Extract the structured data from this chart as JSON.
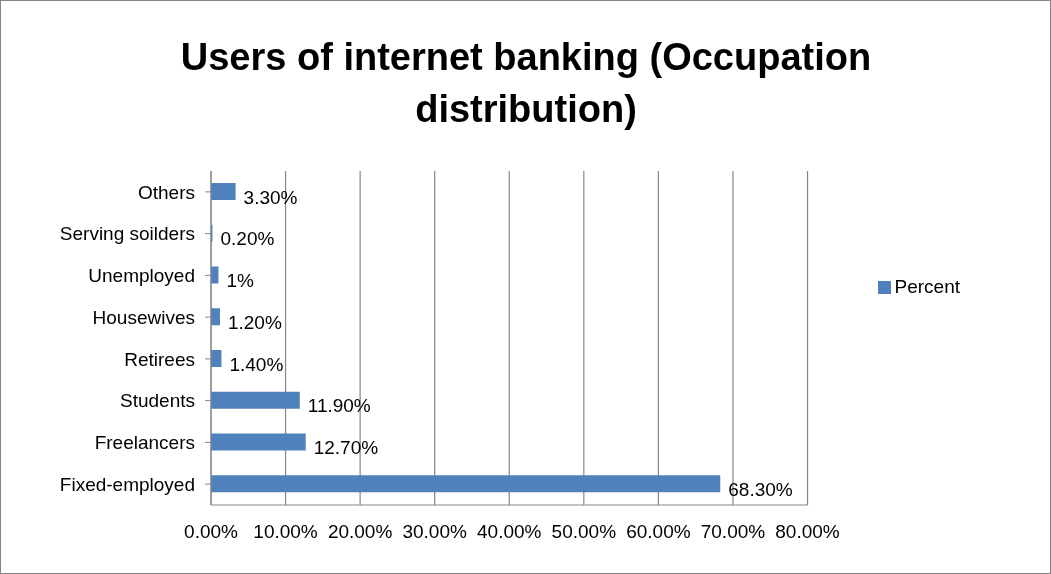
{
  "chart_data": {
    "type": "bar",
    "orientation": "horizontal",
    "title": "Users of internet banking (Occupation distribution)",
    "categories": [
      "Others",
      "Serving soilders",
      "Unemployed",
      "Housewives",
      "Retirees",
      "Students",
      "Freelancers",
      "Fixed-employed"
    ],
    "series": [
      {
        "name": "Percent",
        "color": "#4f81bd",
        "values": [
          3.3,
          0.2,
          1,
          1.2,
          1.4,
          11.9,
          12.7,
          68.3
        ],
        "value_labels": [
          "3.30%",
          "0.20%",
          "1%",
          "1.20%",
          "1.40%",
          "11.90%",
          "12.70%",
          "68.30%"
        ]
      }
    ],
    "xlim": [
      0,
      80
    ],
    "xticks": [
      {
        "value": 0,
        "label": "0.00%"
      },
      {
        "value": 10,
        "label": "10.00%"
      },
      {
        "value": 20,
        "label": "20.00%"
      },
      {
        "value": 30,
        "label": "30.00%"
      },
      {
        "value": 40,
        "label": "40.00%"
      },
      {
        "value": 50,
        "label": "50.00%"
      },
      {
        "value": 60,
        "label": "60.00%"
      },
      {
        "value": 70,
        "label": "70.00%"
      },
      {
        "value": 80,
        "label": "80.00%"
      }
    ],
    "grid": "x",
    "legend": "right"
  }
}
